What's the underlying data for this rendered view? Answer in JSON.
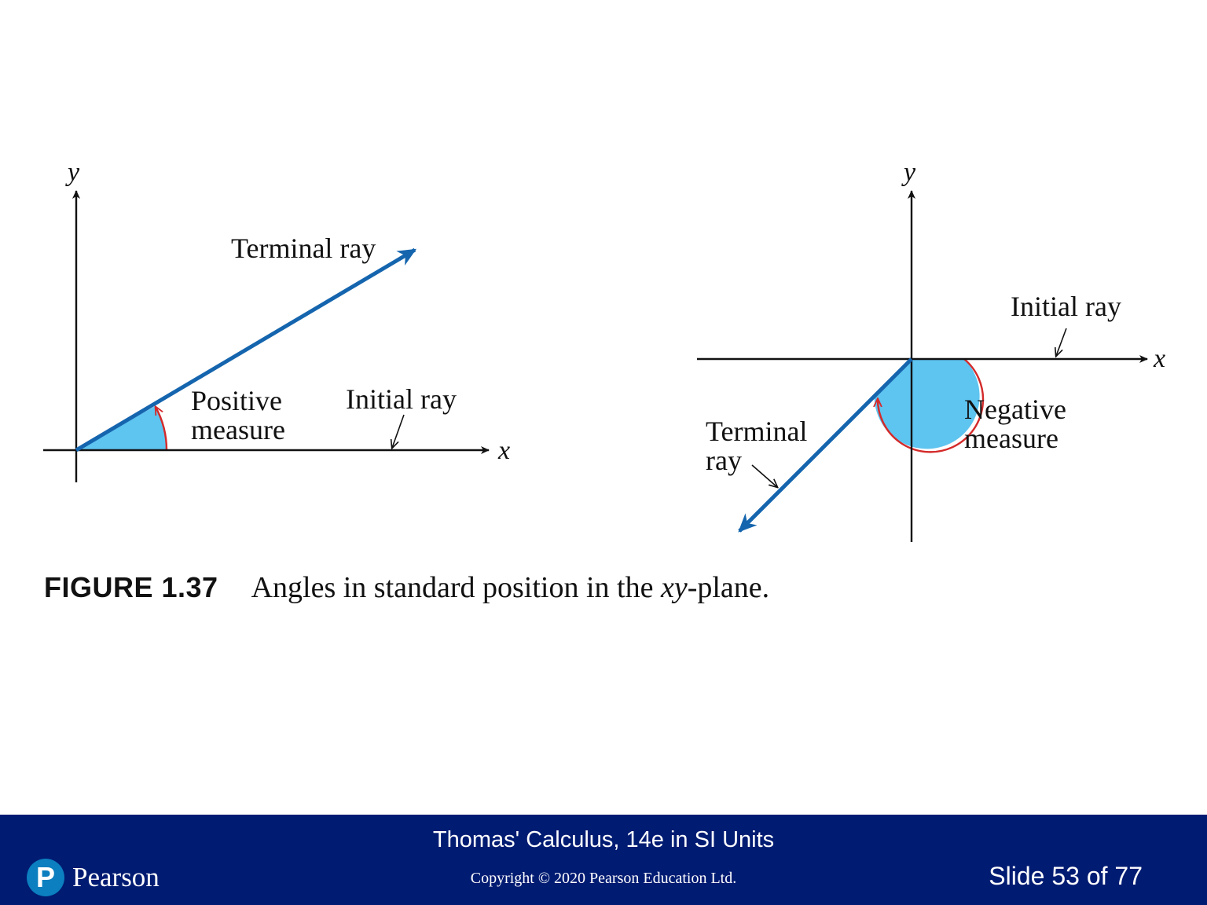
{
  "figure": {
    "left_diagram": {
      "y_axis_label": "y",
      "x_axis_label": "x",
      "terminal_ray_label": "Terminal ray",
      "measure_label_line1": "Positive",
      "measure_label_line2": "measure",
      "initial_ray_label": "Initial ray"
    },
    "right_diagram": {
      "y_axis_label": "y",
      "x_axis_label": "x",
      "initial_ray_label": "Initial ray",
      "measure_label_line1": "Negative",
      "measure_label_line2": "measure",
      "terminal_ray_label_line1": "Terminal",
      "terminal_ray_label_line2": "ray"
    },
    "colors": {
      "ray": "#1565ae",
      "angle_fill": "#5ec4f0",
      "angle_arc": "#d42a2a",
      "axis": "#111111"
    }
  },
  "caption": {
    "label": "FIGURE 1.37",
    "text_before": "Angles in standard position in the ",
    "text_italic": "xy",
    "text_after": "-plane."
  },
  "footer": {
    "book_title": "Thomas' Calculus, 14e in SI Units",
    "copyright": "Copyright © 2020 Pearson Education Ltd.",
    "slide_number": "Slide 53 of 77",
    "logo_letter": "P",
    "logo_text": "Pearson",
    "background_color": "#001b72"
  }
}
